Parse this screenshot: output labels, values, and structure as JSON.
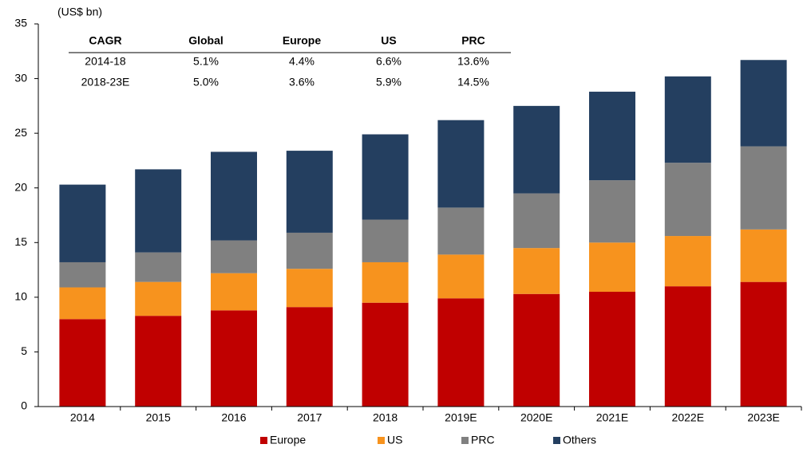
{
  "chart_data": {
    "type": "stacked_bar",
    "unit_label": "(US$ bn)",
    "categories": [
      "2014",
      "2015",
      "2016",
      "2017",
      "2018",
      "2019E",
      "2020E",
      "2021E",
      "2022E",
      "2023E"
    ],
    "series": [
      {
        "name": "Europe",
        "color": "#c00000",
        "values": [
          8.0,
          8.3,
          8.8,
          9.1,
          9.5,
          9.9,
          10.3,
          10.5,
          11.0,
          11.4
        ]
      },
      {
        "name": "US",
        "color": "#f7931e",
        "values": [
          2.9,
          3.1,
          3.4,
          3.5,
          3.7,
          4.0,
          4.2,
          4.5,
          4.6,
          4.8
        ]
      },
      {
        "name": "PRC",
        "color": "#808080",
        "values": [
          2.3,
          2.7,
          3.0,
          3.3,
          3.9,
          4.3,
          5.0,
          5.7,
          6.7,
          7.6
        ]
      },
      {
        "name": "Others",
        "color": "#243f60",
        "values": [
          7.1,
          7.6,
          8.1,
          7.5,
          7.8,
          8.0,
          8.0,
          8.1,
          7.9,
          7.9
        ]
      }
    ],
    "ylim": [
      0,
      35
    ],
    "yticks": [
      0,
      5,
      10,
      15,
      20,
      25,
      30,
      35
    ],
    "legend": "bottom",
    "table": {
      "header": [
        "CAGR",
        "Global",
        "Europe",
        "US",
        "PRC"
      ],
      "rows": [
        [
          "2014-18",
          "5.1%",
          "4.4%",
          "6.6%",
          "13.6%"
        ],
        [
          "2018-23E",
          "5.0%",
          "3.6%",
          "5.9%",
          "14.5%"
        ]
      ]
    }
  }
}
